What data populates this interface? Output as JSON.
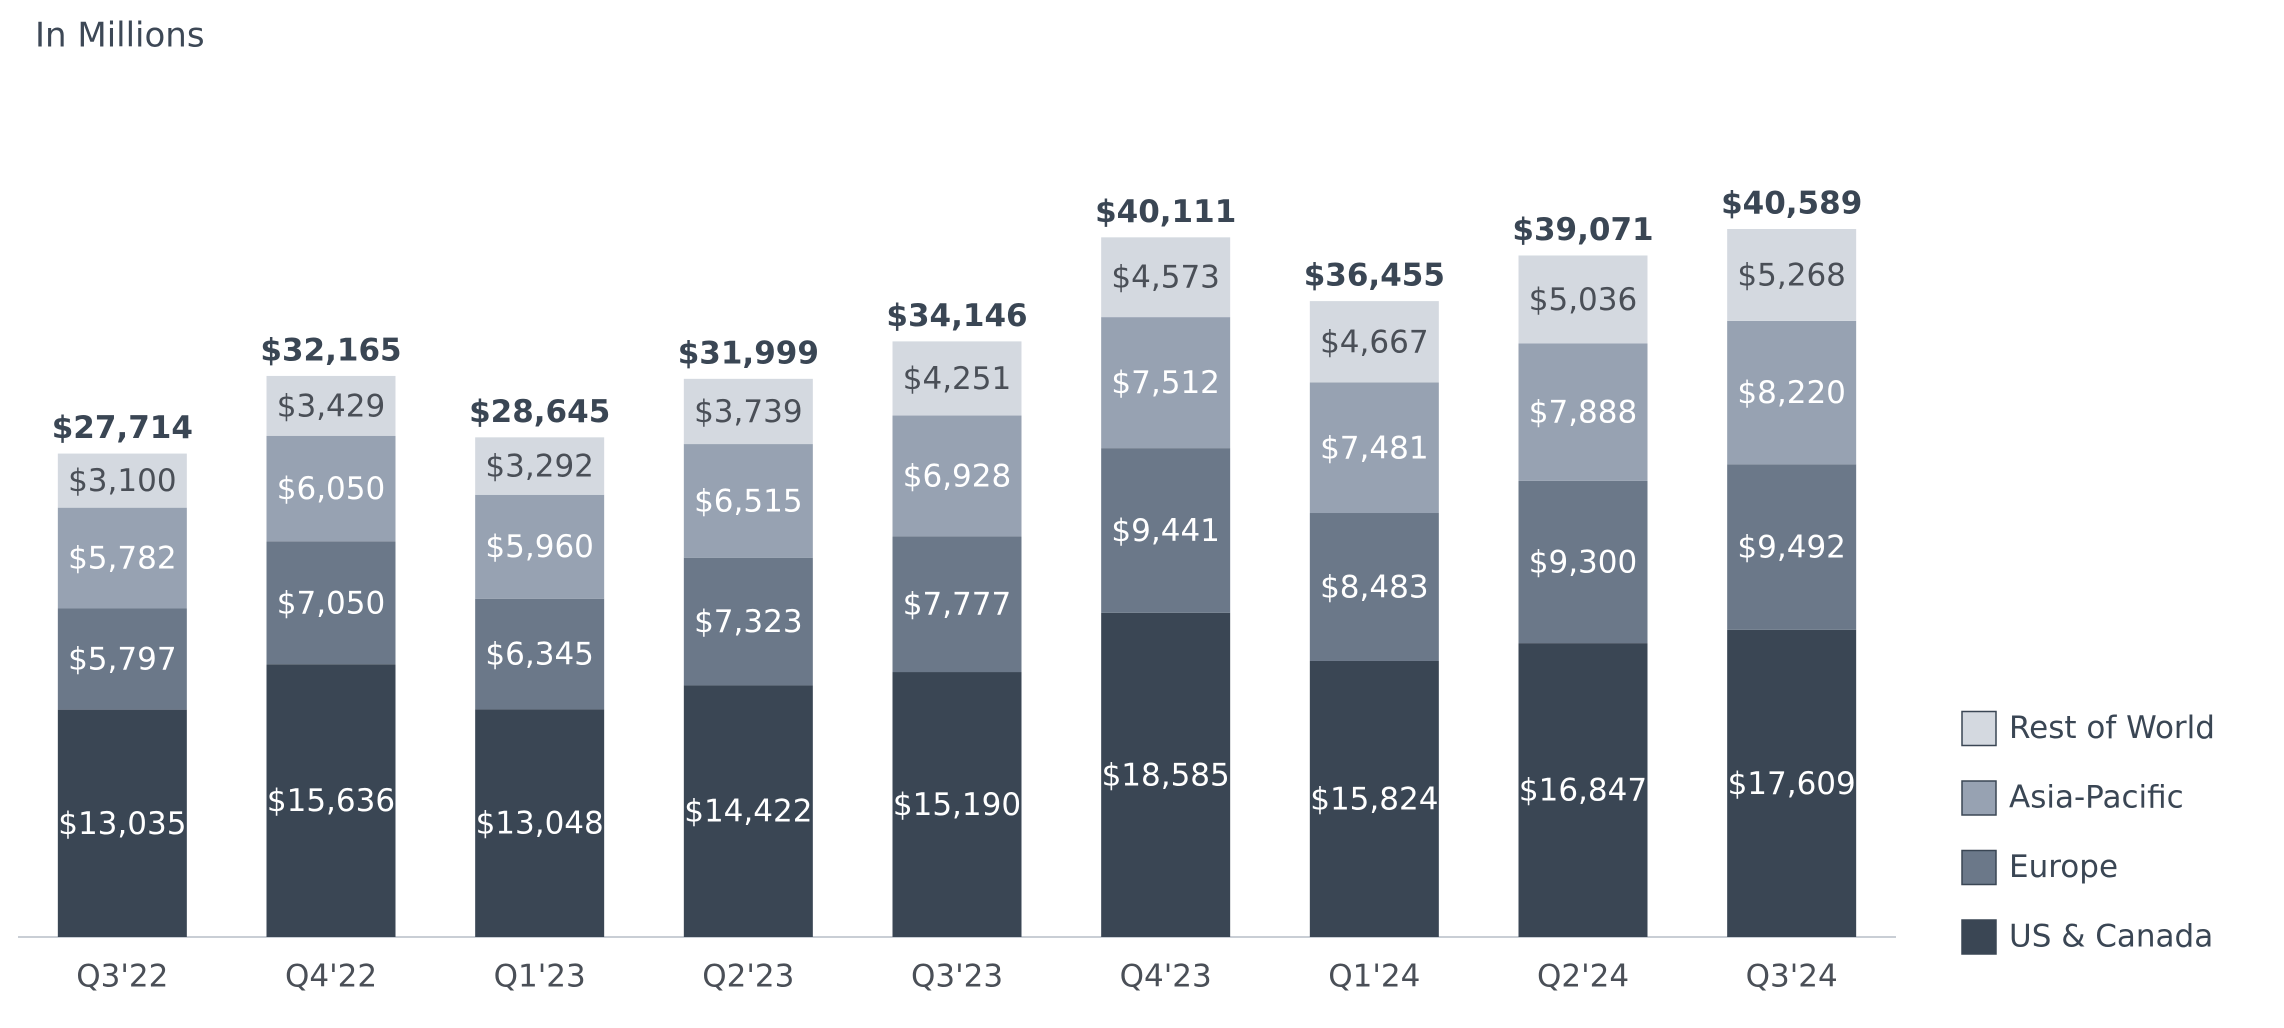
{
  "chart_data": {
    "type": "stacked-bar",
    "subtitle": "In Millions",
    "categories": [
      "Q3'22",
      "Q4'22",
      "Q1'23",
      "Q2'23",
      "Q3'23",
      "Q4'23",
      "Q1'24",
      "Q2'24",
      "Q3'24"
    ],
    "series": [
      {
        "name": "US & Canada",
        "color": "#3a4654",
        "values": [
          13035,
          15636,
          13048,
          14422,
          15190,
          18585,
          15824,
          16847,
          17609
        ],
        "value_labels": [
          "$13,035",
          "$15,636",
          "$13,048",
          "$14,422",
          "$15,190",
          "$18,585",
          "$15,824",
          "$16,847",
          "$17,609"
        ]
      },
      {
        "name": "Europe",
        "color": "#6b7889",
        "values": [
          5797,
          7050,
          6345,
          7323,
          7777,
          9441,
          8483,
          9300,
          9492
        ],
        "value_labels": [
          "$5,797",
          "$7,050",
          "$6,345",
          "$7,323",
          "$7,777",
          "$9,441",
          "$8,483",
          "$9,300",
          "$9,492"
        ]
      },
      {
        "name": "Asia-Pacific",
        "color": "#97a2b2",
        "values": [
          5782,
          6050,
          5960,
          6515,
          6928,
          7512,
          7481,
          7888,
          8220
        ],
        "value_labels": [
          "$5,782",
          "$6,050",
          "$5,960",
          "$6,515",
          "$6,928",
          "$7,512",
          "$7,481",
          "$7,888",
          "$8,220"
        ]
      },
      {
        "name": "Rest of World",
        "color": "#d4d9e0",
        "values": [
          3100,
          3429,
          3292,
          3739,
          4251,
          4573,
          4667,
          5036,
          5268
        ],
        "value_labels": [
          "$3,100",
          "$3,429",
          "$3,292",
          "$3,739",
          "$4,251",
          "$4,573",
          "$4,667",
          "$5,036",
          "$5,268"
        ]
      }
    ],
    "totals": [
      27714,
      32165,
      28645,
      31999,
      34146,
      40111,
      36455,
      39071,
      40589
    ],
    "total_labels": [
      "$27,714",
      "$32,165",
      "$28,645",
      "$31,999",
      "$34,146",
      "$40,111",
      "$36,455",
      "$39,071",
      "$40,589"
    ],
    "legend": "right"
  }
}
